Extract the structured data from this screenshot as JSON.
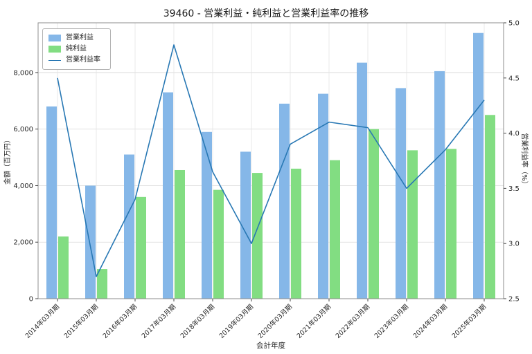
{
  "chart_data": {
    "type": "bar",
    "title": "39460 - 営業利益・純利益と営業利益率の推移",
    "xlabel": "会計年度",
    "categories": [
      "2014年03月期",
      "2015年03月期",
      "2016年03月期",
      "2017年03月期",
      "2018年03月期",
      "2019年03月期",
      "2020年03月期",
      "2021年03月期",
      "2022年03月期",
      "2023年03月期",
      "2024年03月期",
      "2025年03月期"
    ],
    "bar_series": [
      {
        "key": "operating-income",
        "name": "営業利益",
        "axis": "left",
        "color": "#85b7e8",
        "values": [
          6800,
          4000,
          5100,
          7300,
          5900,
          5200,
          6900,
          7250,
          8350,
          7450,
          8050,
          9400
        ]
      },
      {
        "key": "net-income",
        "name": "純利益",
        "axis": "left",
        "color": "#82dd82",
        "values": [
          2200,
          1050,
          3600,
          4550,
          3850,
          4450,
          4600,
          4900,
          6000,
          5250,
          5300,
          6500
        ]
      }
    ],
    "line_series": [
      {
        "key": "operating-margin",
        "name": "営業利益率",
        "axis": "right",
        "color": "#2878b4",
        "values": [
          4.5,
          2.7,
          3.4,
          4.8,
          3.65,
          3.0,
          3.9,
          4.1,
          4.05,
          3.5,
          3.85,
          4.3
        ]
      }
    ],
    "left_axis": {
      "label": "金額（百万円）",
      "min": 0,
      "max": 9760,
      "tick_values": [
        0,
        2000,
        4000,
        6000,
        8000
      ],
      "tick_labels": [
        "0",
        "2,000",
        "4,000",
        "6,000",
        "8,000"
      ]
    },
    "right_axis": {
      "label": "営業利益率（%）",
      "min": 2.5,
      "max": 5.0,
      "tick_values": [
        2.5,
        3.0,
        3.5,
        4.0,
        4.5,
        5.0
      ],
      "tick_labels": [
        "2.5",
        "3.0",
        "3.5",
        "4.0",
        "4.5",
        "5.0"
      ]
    },
    "legend_position": "upper left",
    "grid": true
  }
}
